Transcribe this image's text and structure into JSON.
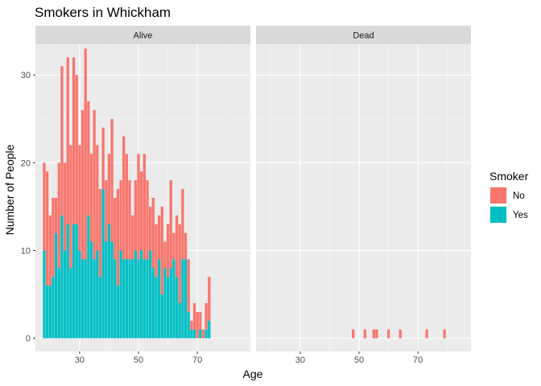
{
  "chart_data": {
    "type": "bar",
    "stacked": true,
    "title": "Smokers in Whickham",
    "xlabel": "Age",
    "ylabel": "Number of People",
    "xlim": [
      15,
      88
    ],
    "ylim": [
      -1.5,
      33.5
    ],
    "x_ticks": [
      30,
      50,
      70
    ],
    "y_ticks": [
      0,
      10,
      20,
      30
    ],
    "grid": true,
    "legend_position": "right",
    "legend_title": "Smoker",
    "series": [
      {
        "name": "No",
        "color": "#F8766D"
      },
      {
        "name": "Yes",
        "color": "#00BFC4"
      }
    ],
    "panels": [
      {
        "label": "Alive",
        "x": [
          18,
          19,
          20,
          21,
          22,
          23,
          24,
          25,
          26,
          27,
          28,
          29,
          30,
          31,
          32,
          33,
          34,
          35,
          36,
          37,
          38,
          39,
          40,
          41,
          42,
          43,
          44,
          45,
          46,
          47,
          48,
          49,
          50,
          51,
          52,
          53,
          54,
          55,
          56,
          57,
          58,
          59,
          60,
          61,
          62,
          63,
          64,
          65,
          66,
          67,
          68,
          69,
          70,
          71,
          72,
          73,
          74
        ],
        "No": [
          10,
          13,
          8,
          9,
          4,
          12,
          17,
          10,
          19,
          14,
          19,
          17,
          12,
          17,
          24,
          13,
          10,
          17,
          12,
          10,
          7,
          7,
          8,
          14,
          7,
          11,
          8,
          14,
          12,
          9,
          5,
          8,
          12,
          9,
          12,
          9,
          5,
          8,
          6,
          5,
          10,
          3,
          6,
          10,
          3,
          7,
          9,
          8,
          3,
          6,
          1,
          3,
          3,
          2,
          1,
          3,
          5
        ],
        "Yes": [
          10,
          6,
          6,
          7,
          12,
          8,
          14,
          10,
          13,
          8,
          13,
          13,
          10,
          9,
          9,
          14,
          11,
          9,
          10,
          7,
          17,
          11,
          13,
          11,
          9,
          6,
          10,
          9,
          9,
          9,
          9,
          10,
          9,
          10,
          9,
          9,
          10,
          8,
          7,
          9,
          5,
          8,
          7,
          8,
          9,
          7,
          4,
          9,
          9,
          3,
          1,
          1,
          0,
          1,
          0,
          1,
          2
        ]
      },
      {
        "label": "Dead",
        "x": [
          18,
          19,
          20,
          21,
          22,
          23,
          24,
          25,
          26,
          27,
          28,
          29,
          30,
          31,
          32,
          33,
          34,
          35,
          36,
          37,
          38,
          39,
          40,
          41,
          42,
          43,
          44,
          45,
          46,
          47,
          48,
          49,
          50,
          51,
          52,
          53,
          54,
          55,
          56,
          57,
          58,
          59,
          60,
          61,
          62,
          63,
          64,
          65,
          66,
          67,
          68,
          69,
          70,
          71,
          72,
          73,
          74,
          75,
          76,
          77,
          78,
          79,
          80,
          81,
          82,
          83,
          84
        ],
        "No": [
          0,
          0,
          0,
          0,
          0,
          0,
          0,
          0,
          0,
          0,
          0,
          0,
          0,
          0,
          0,
          0,
          0,
          0,
          0,
          0,
          0,
          0,
          0,
          0,
          0,
          0,
          0,
          0,
          0,
          0,
          1,
          0,
          0,
          0,
          1,
          0,
          0,
          1,
          1,
          0,
          0,
          0,
          1,
          0,
          0,
          0,
          1,
          0,
          0,
          0,
          0,
          0,
          0,
          0,
          0,
          1,
          0,
          0,
          0,
          0,
          0,
          1,
          0,
          0,
          0,
          0,
          0
        ],
        "Yes": [
          0,
          0,
          0,
          0,
          0,
          0,
          0,
          0,
          0,
          0,
          0,
          0,
          0,
          0,
          0,
          0,
          0,
          0,
          0,
          0,
          0,
          0,
          0,
          0,
          0,
          0,
          0,
          0,
          0,
          0,
          0,
          0,
          0,
          0,
          0,
          0,
          0,
          0,
          0,
          0,
          0,
          0,
          0,
          0,
          0,
          0,
          0,
          0,
          0,
          0,
          0,
          0,
          0,
          0,
          0,
          0,
          0,
          0,
          0,
          0,
          0,
          0,
          0,
          0,
          0,
          0,
          0
        ]
      }
    ]
  }
}
